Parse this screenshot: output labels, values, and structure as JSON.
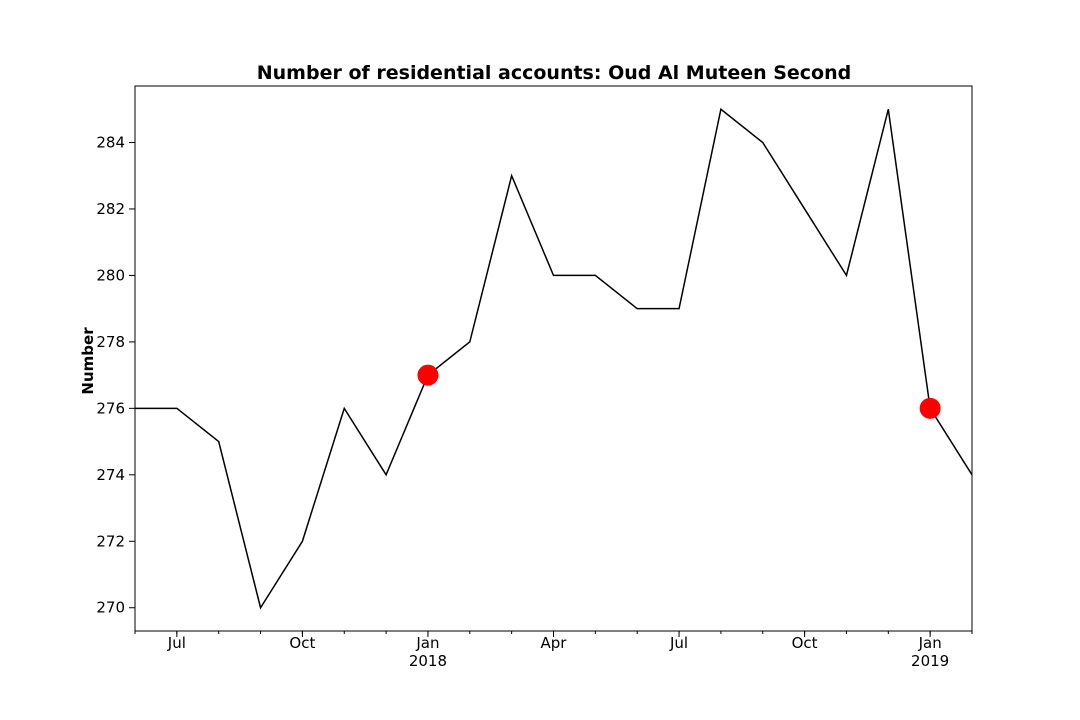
{
  "chart_data": {
    "type": "line",
    "title": "Number of residential accounts: Oud Al Muteen Second",
    "xlabel": "",
    "ylabel": "Number",
    "ylim": [
      269.3,
      285.7
    ],
    "xlim": [
      "2017-06",
      "2019-02"
    ],
    "grid": false,
    "series": [
      {
        "x": [
          "2017-06",
          "2017-07",
          "2017-08",
          "2017-09",
          "2017-10",
          "2017-11",
          "2017-12",
          "2018-01",
          "2018-02",
          "2018-03",
          "2018-04",
          "2018-05",
          "2018-06",
          "2018-07",
          "2018-08",
          "2018-09",
          "2018-10",
          "2018-11",
          "2018-12",
          "2019-01",
          "2019-02"
        ],
        "values": [
          276,
          276,
          275,
          270,
          272,
          276,
          274,
          277,
          278,
          283,
          280,
          280,
          279,
          279,
          285,
          284,
          282,
          280,
          285,
          276,
          274
        ],
        "color": "#000000"
      }
    ],
    "highlighted_points": [
      {
        "x": "2018-01",
        "value": 277,
        "color": "#ff0000"
      },
      {
        "x": "2019-01",
        "value": 276,
        "color": "#ff0000"
      }
    ],
    "yticks": [
      270,
      272,
      274,
      276,
      278,
      280,
      282,
      284
    ],
    "xticks": [
      {
        "x": "2017-07",
        "label": "Jul",
        "year": ""
      },
      {
        "x": "2017-10",
        "label": "Oct",
        "year": ""
      },
      {
        "x": "2018-01",
        "label": "Jan",
        "year": "2018"
      },
      {
        "x": "2018-04",
        "label": "Apr",
        "year": ""
      },
      {
        "x": "2018-07",
        "label": "Jul",
        "year": ""
      },
      {
        "x": "2018-10",
        "label": "Oct",
        "year": ""
      },
      {
        "x": "2019-01",
        "label": "Jan",
        "year": "2019"
      }
    ]
  }
}
